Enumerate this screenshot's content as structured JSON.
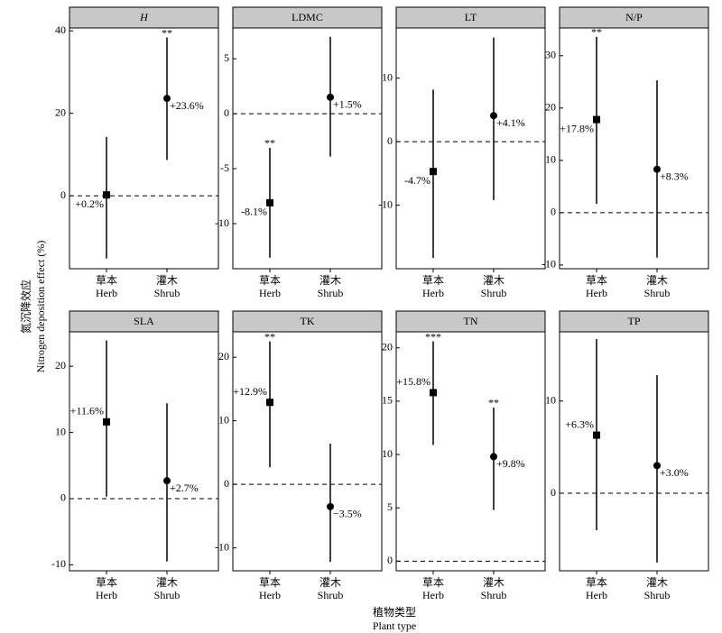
{
  "ylabel": [
    "氮沉降效应",
    "Nitrogen deposition effect (%)"
  ],
  "xlabel": [
    "植物类型",
    "Plant type"
  ],
  "chart_data": [
    {
      "type": "errorbar",
      "title": "H",
      "title_italic": true,
      "categories": [
        [
          "草本",
          "Herb"
        ],
        [
          "灌木",
          "Shrub"
        ]
      ],
      "markers": [
        "square",
        "circle"
      ],
      "values": [
        0.2,
        23.6
      ],
      "lower": [
        -15.2,
        8.7
      ],
      "upper": [
        14.3,
        38.4
      ],
      "value_labels": [
        "+0.2%",
        "+23.6%"
      ],
      "significance": [
        null,
        "**"
      ],
      "ylim": [
        -17.7,
        40.7
      ],
      "yticks": [
        0,
        20,
        40
      ]
    },
    {
      "type": "errorbar",
      "title": "LDMC",
      "categories": [
        [
          "草本",
          "Herb"
        ],
        [
          "灌木",
          "Shrub"
        ]
      ],
      "markers": [
        "square",
        "circle"
      ],
      "values": [
        -8.1,
        1.5
      ],
      "lower": [
        -13.1,
        -3.9
      ],
      "upper": [
        -3.1,
        7.0
      ],
      "value_labels": [
        "-8.1%",
        "+1.5%"
      ],
      "significance": [
        "**",
        null
      ],
      "ylim": [
        -14.1,
        7.8
      ],
      "yticks": [
        -10,
        -5,
        0,
        5
      ]
    },
    {
      "type": "errorbar",
      "title": "LT",
      "categories": [
        [
          "草本",
          "Herb"
        ],
        [
          "灌木",
          "Shrub"
        ]
      ],
      "markers": [
        "square",
        "circle"
      ],
      "values": [
        -4.7,
        4.1
      ],
      "lower": [
        -18.3,
        -9.2
      ],
      "upper": [
        8.2,
        16.4
      ],
      "value_labels": [
        "-4.7%",
        "+4.1%"
      ],
      "significance": [
        null,
        null
      ],
      "ylim": [
        -20,
        17.9
      ],
      "yticks": [
        -10,
        0,
        10
      ]
    },
    {
      "type": "errorbar",
      "title": "N/P",
      "categories": [
        [
          "草本",
          "Herb"
        ],
        [
          "灌木",
          "Shrub"
        ]
      ],
      "markers": [
        "square",
        "circle"
      ],
      "values": [
        17.8,
        8.3
      ],
      "lower": [
        1.7,
        -8.6
      ],
      "upper": [
        33.6,
        25.3
      ],
      "value_labels": [
        "+17.8%",
        "+8.3%"
      ],
      "significance": [
        "**",
        null
      ],
      "ylim": [
        -10.7,
        35.3
      ],
      "yticks": [
        -10,
        0,
        10,
        20,
        30
      ]
    },
    {
      "type": "errorbar",
      "title": "SLA",
      "categories": [
        [
          "草本",
          "Herb"
        ],
        [
          "灌木",
          "Shrub"
        ]
      ],
      "markers": [
        "square",
        "circle"
      ],
      "values": [
        11.6,
        2.7
      ],
      "lower": [
        0.3,
        -9.5
      ],
      "upper": [
        23.9,
        14.4
      ],
      "value_labels": [
        "+11.6%",
        "+2.7%"
      ],
      "significance": [
        null,
        null
      ],
      "ylim": [
        -10.9,
        25.2
      ],
      "yticks": [
        -10,
        0,
        10,
        20
      ]
    },
    {
      "type": "errorbar",
      "title": "TK",
      "categories": [
        [
          "草本",
          "Herb"
        ],
        [
          "灌木",
          "Shrub"
        ]
      ],
      "markers": [
        "square",
        "circle"
      ],
      "values": [
        12.9,
        -3.5
      ],
      "lower": [
        2.7,
        -12.2
      ],
      "upper": [
        22.5,
        6.4
      ],
      "value_labels": [
        "+12.9%",
        "−3.5%"
      ],
      "significance": [
        "**",
        null
      ],
      "ylim": [
        -13.6,
        24.0
      ],
      "yticks": [
        -10,
        0,
        10,
        20
      ]
    },
    {
      "type": "errorbar",
      "title": "TN",
      "categories": [
        [
          "草本",
          "Herb"
        ],
        [
          "灌木",
          "Shrub"
        ]
      ],
      "markers": [
        "square",
        "circle"
      ],
      "values": [
        15.8,
        9.8
      ],
      "lower": [
        10.9,
        4.8
      ],
      "upper": [
        20.6,
        14.4
      ],
      "value_labels": [
        "+15.8%",
        "+9.8%"
      ],
      "significance": [
        "***",
        "**"
      ],
      "ylim": [
        -0.9,
        21.5
      ],
      "yticks": [
        0,
        5,
        10,
        15,
        20
      ]
    },
    {
      "type": "errorbar",
      "title": "TP",
      "categories": [
        [
          "草本",
          "Herb"
        ],
        [
          "灌木",
          "Shrub"
        ]
      ],
      "markers": [
        "square",
        "circle"
      ],
      "values": [
        6.3,
        3.0
      ],
      "lower": [
        -4.0,
        -7.5
      ],
      "upper": [
        16.7,
        12.8
      ],
      "value_labels": [
        "+6.3%",
        "+3.0%"
      ],
      "significance": [
        null,
        null
      ],
      "ylim": [
        -8.4,
        17.5
      ],
      "yticks": [
        0,
        10
      ]
    }
  ]
}
